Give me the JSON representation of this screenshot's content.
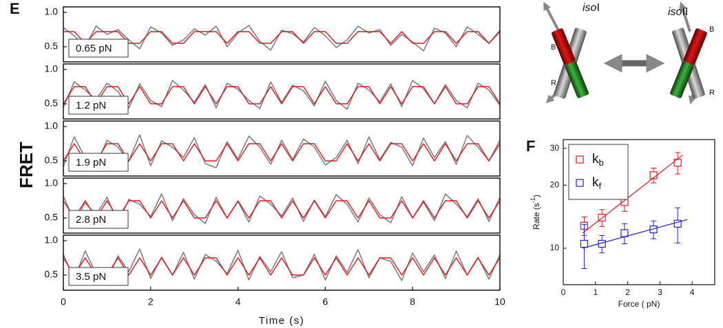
{
  "panel_labels": [
    "E",
    "F"
  ],
  "diagram": {
    "left_label_italic": "iso",
    "left_label": "I",
    "right_label_italic": "iso",
    "right_label": "II",
    "left_top": "B",
    "left_bottom": "R",
    "right_top": "B",
    "right_bottom": "R"
  },
  "chart_data": [
    {
      "type": "line",
      "annotation": "0.65 pN",
      "ylabel": "FRET",
      "xlim": [
        0,
        10
      ],
      "ylim": [
        0.28,
        1.08
      ],
      "yticks": [
        {
          "value": 1,
          "label": "1.0"
        },
        0.5
      ],
      "x": [
        0,
        0.25,
        0.5,
        0.75,
        1,
        1.25,
        1.5,
        1.75,
        2,
        2.25,
        2.5,
        2.75,
        3,
        3.25,
        3.5,
        3.75,
        4,
        4.25,
        4.5,
        4.75,
        5,
        5.25,
        5.5,
        5.75,
        6,
        6.25,
        6.5,
        6.75,
        7,
        7.25,
        7.5,
        7.75,
        8,
        8.25,
        8.5,
        8.75,
        9,
        9.25,
        9.5,
        9.75,
        10
      ],
      "series": [
        {
          "color": "#7f7f7f",
          "values": [
            0.78,
            0.66,
            0.5,
            0.8,
            0.68,
            0.75,
            0.6,
            0.47,
            0.79,
            0.7,
            0.52,
            0.6,
            0.76,
            0.67,
            0.8,
            0.5,
            0.7,
            0.81,
            0.58,
            0.45,
            0.74,
            0.69,
            0.57,
            0.78,
            0.66,
            0.49,
            0.6,
            0.8,
            0.7,
            0.75,
            0.52,
            0.68,
            0.57,
            0.44,
            0.77,
            0.7,
            0.5,
            0.79,
            0.68,
            0.55,
            0.74
          ]
        },
        {
          "color": "#e8141c",
          "values": [
            0.72,
            0.72,
            0.55,
            0.72,
            0.72,
            0.72,
            0.55,
            0.55,
            0.72,
            0.72,
            0.55,
            0.55,
            0.72,
            0.72,
            0.72,
            0.55,
            0.72,
            0.72,
            0.55,
            0.55,
            0.72,
            0.72,
            0.55,
            0.72,
            0.72,
            0.55,
            0.55,
            0.72,
            0.72,
            0.72,
            0.55,
            0.72,
            0.55,
            0.55,
            0.72,
            0.72,
            0.55,
            0.72,
            0.72,
            0.55,
            0.72
          ]
        }
      ]
    },
    {
      "type": "line",
      "annotation": "1.2 pN",
      "xlim": [
        0,
        10
      ],
      "ylim": [
        0.28,
        1.08
      ],
      "yticks": [
        {
          "value": 1,
          "label": "1.0"
        },
        0.5
      ],
      "x": [
        0,
        0.25,
        0.5,
        0.75,
        1,
        1.25,
        1.5,
        1.75,
        2,
        2.25,
        2.5,
        2.75,
        3,
        3.25,
        3.5,
        3.75,
        4,
        4.25,
        4.5,
        4.75,
        5,
        5.25,
        5.5,
        5.75,
        6,
        6.25,
        6.5,
        6.75,
        7,
        7.25,
        7.5,
        7.75,
        8,
        8.25,
        8.5,
        8.75,
        9,
        9.25,
        9.5,
        9.75,
        10
      ],
      "series": [
        {
          "color": "#7f7f7f",
          "values": [
            0.45,
            0.82,
            0.7,
            0.56,
            0.8,
            0.68,
            0.44,
            0.79,
            0.55,
            0.46,
            0.84,
            0.7,
            0.52,
            0.78,
            0.44,
            0.8,
            0.71,
            0.55,
            0.43,
            0.82,
            0.52,
            0.77,
            0.69,
            0.47,
            0.83,
            0.55,
            0.42,
            0.8,
            0.7,
            0.53,
            0.79,
            0.46,
            0.84,
            0.72,
            0.5,
            0.78,
            0.55,
            0.44,
            0.8,
            0.7,
            0.48
          ]
        },
        {
          "color": "#e8141c",
          "values": [
            0.5,
            0.75,
            0.75,
            0.5,
            0.75,
            0.75,
            0.5,
            0.75,
            0.5,
            0.5,
            0.75,
            0.75,
            0.5,
            0.75,
            0.5,
            0.75,
            0.75,
            0.5,
            0.5,
            0.75,
            0.5,
            0.75,
            0.75,
            0.5,
            0.75,
            0.5,
            0.5,
            0.75,
            0.75,
            0.5,
            0.75,
            0.5,
            0.75,
            0.75,
            0.5,
            0.75,
            0.5,
            0.5,
            0.75,
            0.75,
            0.5
          ]
        }
      ]
    },
    {
      "type": "line",
      "annotation": "1.9 pN",
      "xlim": [
        0,
        10
      ],
      "ylim": [
        0.28,
        1.08
      ],
      "yticks": [
        {
          "value": 1,
          "label": "1.0"
        },
        0.5
      ],
      "x": [
        0,
        0.25,
        0.5,
        0.75,
        1,
        1.25,
        1.5,
        1.75,
        2,
        2.25,
        2.5,
        2.75,
        3,
        3.25,
        3.5,
        3.75,
        4,
        4.25,
        4.5,
        4.75,
        5,
        5.25,
        5.5,
        5.75,
        6,
        6.25,
        6.5,
        6.75,
        7,
        7.25,
        7.5,
        7.75,
        8,
        8.25,
        8.5,
        8.75,
        9,
        9.25,
        9.5,
        9.75,
        10
      ],
      "series": [
        {
          "color": "#7f7f7f",
          "values": [
            0.42,
            0.85,
            0.55,
            0.44,
            0.8,
            0.7,
            0.5,
            0.88,
            0.43,
            0.79,
            0.7,
            0.55,
            0.84,
            0.46,
            0.4,
            0.78,
            0.53,
            0.86,
            0.7,
            0.45,
            0.8,
            0.52,
            0.82,
            0.7,
            0.44,
            0.55,
            0.8,
            0.46,
            0.85,
            0.52,
            0.77,
            0.7,
            0.43,
            0.83,
            0.55,
            0.78,
            0.45,
            0.87,
            0.7,
            0.5,
            0.8
          ]
        },
        {
          "color": "#e8141c",
          "values": [
            0.5,
            0.75,
            0.5,
            0.5,
            0.75,
            0.75,
            0.5,
            0.75,
            0.5,
            0.75,
            0.75,
            0.5,
            0.75,
            0.5,
            0.5,
            0.75,
            0.5,
            0.75,
            0.75,
            0.5,
            0.75,
            0.5,
            0.75,
            0.75,
            0.5,
            0.5,
            0.75,
            0.5,
            0.75,
            0.5,
            0.75,
            0.75,
            0.5,
            0.75,
            0.5,
            0.75,
            0.5,
            0.75,
            0.75,
            0.5,
            0.75
          ]
        }
      ]
    },
    {
      "type": "line",
      "annotation": "2.8 pN",
      "xlim": [
        0,
        10
      ],
      "ylim": [
        0.28,
        1.08
      ],
      "yticks": [
        {
          "value": 1,
          "label": "1.0"
        },
        0.5
      ],
      "x": [
        0,
        0.25,
        0.5,
        0.75,
        1,
        1.25,
        1.5,
        1.75,
        2,
        2.25,
        2.5,
        2.75,
        3,
        3.25,
        3.5,
        3.75,
        4,
        4.25,
        4.5,
        4.75,
        5,
        5.25,
        5.5,
        5.75,
        6,
        6.25,
        6.5,
        6.75,
        7,
        7.25,
        7.5,
        7.75,
        8,
        8.25,
        8.5,
        8.75,
        9,
        9.25,
        9.5,
        9.75,
        10
      ],
      "series": [
        {
          "color": "#7f7f7f",
          "values": [
            0.82,
            0.45,
            0.72,
            0.55,
            0.8,
            0.43,
            0.77,
            0.7,
            0.52,
            0.85,
            0.46,
            0.78,
            0.55,
            0.42,
            0.8,
            0.5,
            0.74,
            0.44,
            0.82,
            0.7,
            0.53,
            0.79,
            0.45,
            0.76,
            0.52,
            0.84,
            0.7,
            0.44,
            0.79,
            0.55,
            0.43,
            0.81,
            0.5,
            0.73,
            0.46,
            0.85,
            0.7,
            0.52,
            0.78,
            0.45,
            0.8
          ]
        },
        {
          "color": "#e8141c",
          "values": [
            0.75,
            0.5,
            0.75,
            0.5,
            0.75,
            0.5,
            0.75,
            0.75,
            0.5,
            0.75,
            0.5,
            0.75,
            0.5,
            0.5,
            0.75,
            0.5,
            0.75,
            0.5,
            0.75,
            0.75,
            0.5,
            0.75,
            0.5,
            0.75,
            0.5,
            0.75,
            0.75,
            0.5,
            0.75,
            0.5,
            0.5,
            0.75,
            0.5,
            0.75,
            0.5,
            0.75,
            0.75,
            0.5,
            0.75,
            0.5,
            0.75
          ]
        }
      ]
    },
    {
      "type": "line",
      "annotation": "3.5 pN",
      "xlabel": "Time (s)",
      "xlim": [
        0,
        10
      ],
      "xticks": [
        0,
        2,
        4,
        6,
        8,
        10
      ],
      "ylim": [
        0.28,
        1.08
      ],
      "yticks": [
        {
          "value": 1,
          "label": "1.0"
        },
        0.5
      ],
      "x": [
        0,
        0.25,
        0.5,
        0.75,
        1,
        1.25,
        1.5,
        1.75,
        2,
        2.25,
        2.5,
        2.75,
        3,
        3.25,
        3.5,
        3.75,
        4,
        4.25,
        4.5,
        4.75,
        5,
        5.25,
        5.5,
        5.75,
        6,
        6.25,
        6.5,
        6.75,
        7,
        7.25,
        7.5,
        7.75,
        8,
        8.25,
        8.5,
        8.75,
        9,
        9.25,
        9.5,
        9.75,
        10
      ],
      "series": [
        {
          "color": "#7f7f7f",
          "values": [
            0.8,
            0.44,
            0.85,
            0.52,
            0.42,
            0.78,
            0.55,
            0.88,
            0.45,
            0.76,
            0.5,
            0.83,
            0.44,
            0.8,
            0.7,
            0.52,
            0.86,
            0.43,
            0.77,
            0.55,
            0.84,
            0.46,
            0.5,
            0.8,
            0.43,
            0.78,
            0.54,
            0.87,
            0.46,
            0.75,
            0.7,
            0.42,
            0.82,
            0.55,
            0.79,
            0.45,
            0.85,
            0.5,
            0.76,
            0.44,
            0.8
          ]
        },
        {
          "color": "#e8141c",
          "values": [
            0.75,
            0.5,
            0.75,
            0.5,
            0.5,
            0.75,
            0.5,
            0.75,
            0.5,
            0.75,
            0.5,
            0.75,
            0.5,
            0.75,
            0.75,
            0.5,
            0.75,
            0.5,
            0.75,
            0.5,
            0.75,
            0.5,
            0.5,
            0.75,
            0.5,
            0.75,
            0.5,
            0.75,
            0.5,
            0.75,
            0.75,
            0.5,
            0.75,
            0.5,
            0.75,
            0.5,
            0.75,
            0.5,
            0.75,
            0.5,
            0.75
          ]
        }
      ]
    },
    {
      "type": "scatter",
      "log_y": true,
      "legend": "upper left",
      "ylabel": "Rate (s",
      "ylabel_sup": "-1",
      "ylabel_end": ")",
      "xlabel": "Force ( pN)",
      "xlim": [
        0,
        4.7
      ],
      "xticks": [
        0,
        1,
        2,
        3,
        4
      ],
      "ylim": [
        6.7,
        33
      ],
      "yticks": [
        10,
        20,
        30
      ],
      "series": [
        {
          "name": "k",
          "subscript": "b",
          "color": "#e8141c",
          "x": [
            0.65,
            1.2,
            1.9,
            2.8,
            3.55
          ],
          "values": [
            12.8,
            14.0,
            16.6,
            22.3,
            25.6
          ],
          "errors": [
            1.3,
            1.3,
            1.6,
            1.8,
            3.0
          ]
        },
        {
          "name": "k",
          "subscript": "f",
          "color": "#1c1cd6",
          "x": [
            0.65,
            1.2,
            1.9,
            2.8,
            3.55
          ],
          "values": [
            10.5,
            10.5,
            11.8,
            12.3,
            13.1
          ],
          "errors": [
            2.5,
            1.0,
            1.3,
            1.2,
            2.5
          ]
        }
      ],
      "fits": [
        {
          "color": "#e8141c",
          "x": [
            0.6,
            3.7
          ],
          "values": [
            11.8,
            27.8
          ]
        },
        {
          "color": "#1c1cd6",
          "x": [
            0.6,
            3.85
          ],
          "values": [
            10.0,
            13.7
          ]
        }
      ]
    }
  ]
}
